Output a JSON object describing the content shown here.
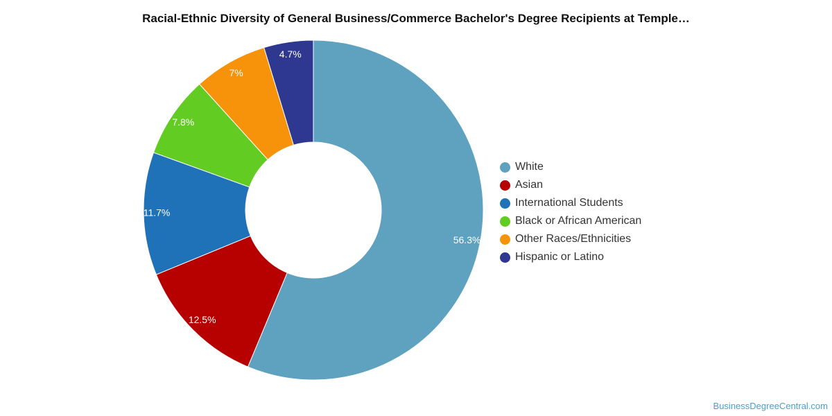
{
  "chart_data": {
    "type": "pie",
    "title": "Racial-Ethnic Diversity of General Business/Commerce Bachelor's Degree Recipients at Temple…",
    "donut": true,
    "legend_position": "right",
    "categories": [
      "White",
      "Asian",
      "International Students",
      "Black or African American",
      "Other Races/Ethnicities",
      "Hispanic or Latino"
    ],
    "values": [
      56.3,
      12.5,
      11.7,
      7.8,
      7,
      4.7
    ],
    "data_labels": [
      "56.3%",
      "12.5%",
      "11.7%",
      "7.8%",
      "7%",
      "4.7%"
    ],
    "colors": [
      "#5ea2bf",
      "#b70000",
      "#1f72b8",
      "#62cc22",
      "#f7930a",
      "#2e3890"
    ]
  },
  "watermark": "BusinessDegreeCentral.com"
}
